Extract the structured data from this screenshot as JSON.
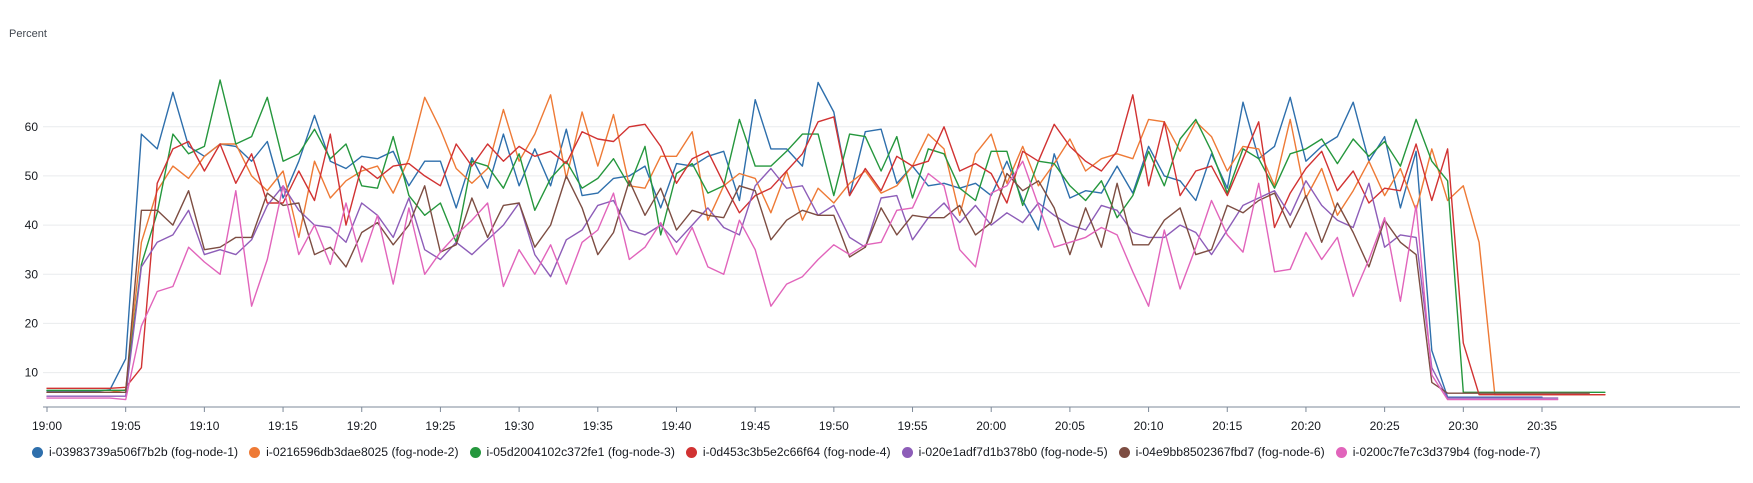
{
  "chart_data": {
    "type": "line",
    "ylabel": "Percent",
    "ylim": [
      3,
      75
    ],
    "yticks": [
      10,
      20,
      30,
      40,
      50,
      60
    ],
    "grid": true,
    "legend_position": "bottom",
    "x_start": "19:00",
    "x_step_minutes": 1,
    "xticks": [
      "19:00",
      "19:05",
      "19:10",
      "19:15",
      "19:20",
      "19:25",
      "19:30",
      "19:35",
      "19:40",
      "19:45",
      "19:50",
      "19:55",
      "20:00",
      "20:05",
      "20:10",
      "20:15",
      "20:20",
      "20:25",
      "20:30",
      "20:35"
    ],
    "series": [
      {
        "name": "i-03983739a506f7b2b (fog-node-1)",
        "color": "#2e6fac",
        "values": [
          6.3,
          6.3,
          6.2,
          6.2,
          6.5,
          12.8,
          58.5,
          55.5,
          67.0,
          56.0,
          54.0,
          56.5,
          56.0,
          53.0,
          57.0,
          45.5,
          53.0,
          62.3,
          53.0,
          51.5,
          54.0,
          53.5,
          55.0,
          48.0,
          53.0,
          53.0,
          43.5,
          53.7,
          47.5,
          58.5,
          48.0,
          55.5,
          48.0,
          59.5,
          46.0,
          46.5,
          49.5,
          50.0,
          52.0,
          43.5,
          52.5,
          52.0,
          54.0,
          55.0,
          45.0,
          65.5,
          55.5,
          55.5,
          52.0,
          69.0,
          63.0,
          46.0,
          59.0,
          59.5,
          48.5,
          52.0,
          48.0,
          48.5,
          47.5,
          48.5,
          46.0,
          53.0,
          45.0,
          39.0,
          54.5,
          45.5,
          47.0,
          46.5,
          52.0,
          46.5,
          56.0,
          50.0,
          49.0,
          45.0,
          54.5,
          47.5,
          65.0,
          53.5,
          56.0,
          66.0,
          53.0,
          56.0,
          58.0,
          65.0,
          53.0,
          58.0,
          43.5,
          55.0,
          14.5,
          5.0,
          5.0,
          5.0,
          5.0,
          5.0,
          5.0,
          5.0
        ]
      },
      {
        "name": "i-0216596db3dae8025 (fog-node-2)",
        "color": "#ee7a36",
        "values": [
          6.0,
          6.0,
          6.0,
          6.0,
          6.0,
          6.5,
          36.5,
          47.0,
          52.0,
          49.5,
          54.0,
          56.5,
          56.5,
          50.0,
          47.0,
          51.0,
          37.5,
          53.0,
          45.5,
          49.0,
          51.0,
          52.0,
          46.5,
          53.5,
          66.0,
          59.5,
          51.5,
          48.5,
          51.5,
          63.5,
          53.0,
          58.5,
          66.5,
          49.5,
          63.0,
          52.0,
          62.5,
          48.0,
          47.5,
          54.0,
          54.0,
          59.0,
          41.0,
          48.0,
          50.5,
          49.5,
          42.5,
          51.0,
          41.0,
          47.5,
          44.5,
          48.5,
          51.0,
          46.5,
          48.0,
          52.0,
          58.5,
          55.5,
          42.0,
          54.5,
          58.5,
          48.5,
          56.0,
          48.0,
          52.5,
          57.5,
          51.0,
          53.5,
          54.5,
          53.5,
          61.5,
          61.0,
          55.0,
          61.0,
          58.0,
          51.0,
          56.0,
          55.5,
          48.0,
          61.5,
          45.5,
          51.5,
          42.0,
          47.0,
          53.0,
          46.0,
          51.5,
          43.0,
          55.5,
          45.0,
          48.0,
          36.5,
          5.5,
          5.5,
          5.5,
          5.5,
          5.5,
          5.5,
          5.5,
          5.5
        ]
      },
      {
        "name": "i-05d2004102c372fe1 (fog-node-3)",
        "color": "#25973d",
        "values": [
          6.4,
          6.4,
          6.4,
          6.4,
          6.4,
          6.4,
          32.0,
          42.5,
          58.5,
          54.5,
          56.0,
          69.5,
          56.5,
          58.0,
          66.0,
          53.0,
          54.5,
          59.5,
          53.5,
          56.5,
          48.0,
          47.5,
          58.0,
          46.0,
          42.0,
          44.5,
          36.5,
          53.0,
          52.0,
          47.5,
          54.5,
          43.0,
          49.5,
          53.0,
          47.5,
          49.5,
          53.5,
          48.0,
          56.0,
          38.0,
          50.5,
          52.5,
          46.5,
          48.0,
          61.5,
          52.0,
          52.0,
          55.0,
          58.5,
          58.5,
          46.0,
          58.5,
          58.0,
          51.0,
          58.0,
          45.5,
          55.5,
          54.5,
          47.5,
          45.0,
          55.0,
          55.0,
          44.0,
          53.0,
          52.5,
          48.0,
          45.0,
          49.0,
          41.5,
          46.0,
          55.0,
          48.0,
          57.5,
          61.5,
          55.0,
          46.5,
          55.5,
          53.5,
          47.5,
          54.5,
          55.5,
          57.5,
          52.5,
          57.5,
          54.0,
          57.0,
          52.0,
          61.5,
          53.0,
          49.0,
          6.0,
          6.0,
          6.0,
          6.0,
          6.0,
          6.0,
          6.0,
          6.0,
          6.0,
          6.0
        ]
      },
      {
        "name": "i-0d453c3b5e2c66f64 (fog-node-4)",
        "color": "#d13232",
        "values": [
          6.8,
          6.8,
          6.8,
          6.8,
          6.8,
          7.0,
          11.0,
          48.5,
          55.5,
          57.0,
          51.0,
          56.5,
          48.5,
          54.5,
          44.5,
          44.5,
          51.0,
          45.0,
          58.5,
          40.0,
          52.0,
          49.5,
          52.0,
          52.5,
          50.0,
          48.0,
          56.5,
          52.0,
          56.5,
          53.0,
          56.0,
          54.0,
          55.0,
          52.5,
          59.0,
          57.5,
          57.0,
          60.0,
          60.5,
          56.0,
          48.5,
          53.5,
          55.0,
          48.5,
          42.5,
          46.0,
          47.5,
          51.0,
          54.5,
          61.0,
          62.0,
          46.0,
          51.5,
          47.0,
          54.0,
          52.0,
          53.0,
          60.0,
          51.0,
          52.5,
          50.5,
          44.5,
          55.0,
          53.0,
          60.5,
          56.0,
          53.0,
          51.0,
          55.0,
          66.5,
          48.0,
          61.0,
          46.0,
          51.0,
          52.0,
          46.0,
          53.5,
          61.0,
          39.5,
          46.5,
          51.5,
          55.0,
          47.0,
          51.0,
          44.5,
          47.5,
          47.0,
          56.5,
          45.0,
          55.5,
          16.0,
          5.5,
          5.5,
          5.5,
          5.5,
          5.5,
          5.5,
          5.5,
          5.5,
          5.5
        ]
      },
      {
        "name": "i-020e1adf7d1b378b0 (fog-node-5)",
        "color": "#8d5db8",
        "values": [
          5.2,
          5.2,
          5.2,
          5.2,
          5.2,
          5.2,
          31.5,
          36.5,
          38.0,
          43.0,
          34.0,
          35.0,
          34.0,
          37.0,
          44.0,
          48.0,
          43.0,
          40.0,
          39.5,
          36.5,
          44.5,
          42.0,
          37.5,
          45.5,
          35.0,
          33.0,
          36.5,
          34.0,
          37.0,
          40.0,
          44.5,
          34.0,
          29.5,
          37.0,
          39.0,
          44.0,
          45.0,
          39.0,
          38.0,
          40.0,
          36.5,
          40.0,
          43.5,
          39.5,
          38.0,
          48.0,
          51.5,
          47.5,
          48.0,
          42.0,
          44.0,
          37.5,
          35.5,
          45.5,
          46.0,
          37.0,
          41.5,
          44.5,
          40.5,
          44.0,
          40.0,
          42.5,
          40.5,
          44.5,
          42.0,
          40.0,
          39.0,
          44.0,
          43.0,
          38.5,
          37.5,
          37.5,
          40.0,
          38.5,
          34.0,
          39.0,
          44.0,
          45.5,
          47.0,
          42.0,
          49.0,
          44.0,
          41.0,
          39.5,
          48.5,
          35.5,
          38.0,
          37.5,
          11.0,
          4.8,
          4.8,
          4.8,
          4.8,
          4.8,
          4.8,
          4.8,
          4.8
        ]
      },
      {
        "name": "i-04e9bb8502367fbd7 (fog-node-6)",
        "color": "#7d4d42",
        "values": [
          6.0,
          6.0,
          6.0,
          6.0,
          6.0,
          6.0,
          43.0,
          43.0,
          40.0,
          47.0,
          35.0,
          35.5,
          37.5,
          37.5,
          46.5,
          44.0,
          44.5,
          34.0,
          35.5,
          31.5,
          38.5,
          40.5,
          36.0,
          40.0,
          48.0,
          34.5,
          36.0,
          45.5,
          37.5,
          44.0,
          44.5,
          35.5,
          40.0,
          50.0,
          43.5,
          34.0,
          38.5,
          49.0,
          42.0,
          47.5,
          39.0,
          43.0,
          42.0,
          41.5,
          48.0,
          47.0,
          37.0,
          41.0,
          43.0,
          42.0,
          42.0,
          33.5,
          35.5,
          43.5,
          38.0,
          42.0,
          41.5,
          41.5,
          44.0,
          38.0,
          40.5,
          50.5,
          47.0,
          49.0,
          43.5,
          34.0,
          43.5,
          35.5,
          48.5,
          36.0,
          36.0,
          41.0,
          43.5,
          34.0,
          35.0,
          44.0,
          42.5,
          45.0,
          46.5,
          39.5,
          46.0,
          36.5,
          44.5,
          38.5,
          31.5,
          41.0,
          36.5,
          34.0,
          8.0,
          5.8,
          5.8,
          5.8,
          5.8,
          5.8,
          5.8,
          5.8,
          5.8,
          5.8,
          5.8
        ]
      },
      {
        "name": "i-0200c7fe7c3d379b4 (fog-node-7)",
        "color": "#e164bb",
        "values": [
          4.8,
          4.8,
          4.8,
          4.8,
          4.8,
          4.5,
          19.5,
          26.5,
          27.5,
          35.5,
          32.5,
          30.0,
          47.0,
          23.5,
          33.0,
          48.0,
          34.0,
          40.0,
          32.0,
          44.5,
          32.5,
          42.0,
          28.0,
          43.5,
          30.0,
          34.5,
          38.0,
          41.0,
          44.5,
          27.5,
          35.0,
          30.0,
          36.0,
          28.0,
          36.5,
          39.0,
          46.5,
          33.0,
          35.5,
          40.5,
          34.0,
          39.5,
          31.5,
          30.0,
          41.0,
          35.0,
          23.5,
          28.0,
          29.5,
          33.0,
          36.0,
          34.0,
          36.0,
          36.5,
          43.0,
          43.5,
          50.5,
          48.0,
          35.0,
          31.5,
          46.5,
          48.0,
          53.0,
          44.0,
          35.5,
          36.5,
          37.5,
          39.5,
          38.0,
          30.5,
          23.5,
          39.0,
          27.0,
          35.5,
          45.0,
          38.0,
          34.5,
          48.5,
          30.5,
          31.0,
          38.5,
          33.0,
          37.5,
          25.5,
          33.0,
          41.5,
          24.5,
          44.0,
          9.5,
          4.5,
          4.5,
          4.5,
          4.5,
          4.5,
          4.5,
          4.5,
          4.5
        ]
      }
    ]
  }
}
